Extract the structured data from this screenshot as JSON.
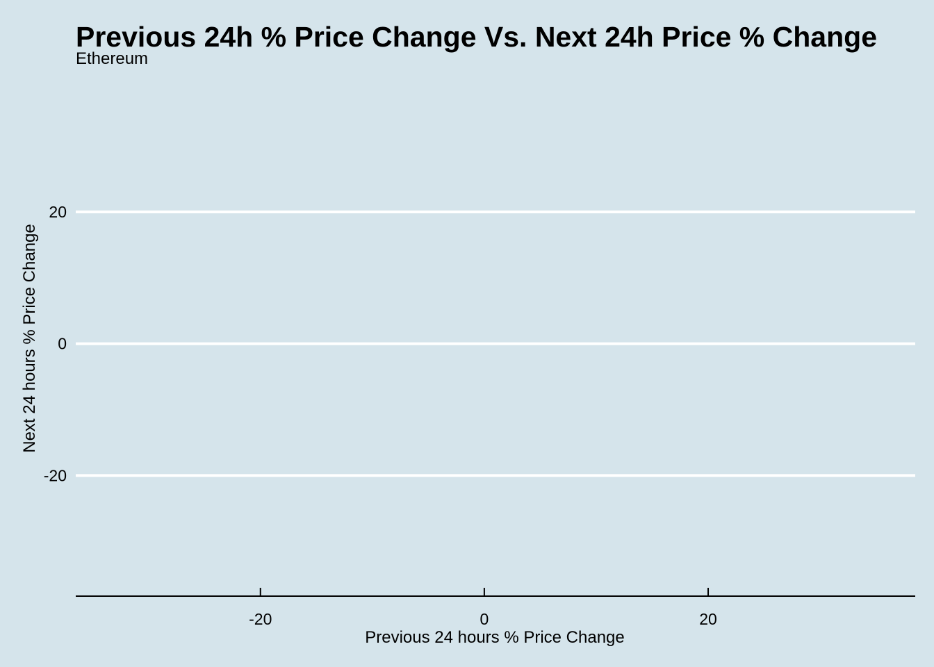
{
  "chart_data": {
    "type": "scatter",
    "title": "Previous 24h % Price Change Vs. Next 24h Price % Change",
    "subtitle": "Ethereum",
    "xlabel": "Previous 24 hours % Price Change",
    "ylabel": "Next 24 hours % Price Change",
    "xlim": [
      -36.5,
      38.5
    ],
    "ylim": [
      -38.3,
      39.5
    ],
    "x_ticks": [
      -20,
      0,
      20
    ],
    "y_ticks": [
      -20,
      0,
      20
    ],
    "x_tick_labels": [
      "-20",
      "0",
      "20"
    ],
    "y_tick_labels": [
      "-20",
      "0",
      "20"
    ],
    "series": [
      {
        "x": [],
        "y": []
      }
    ],
    "grid": {
      "horizontal_major": true,
      "vertical_major": false
    },
    "legend": "none"
  },
  "colors": {
    "background": "#d5e4eb",
    "gridline": "#ffffff",
    "axis_line": "#000000",
    "text": "#000000"
  }
}
